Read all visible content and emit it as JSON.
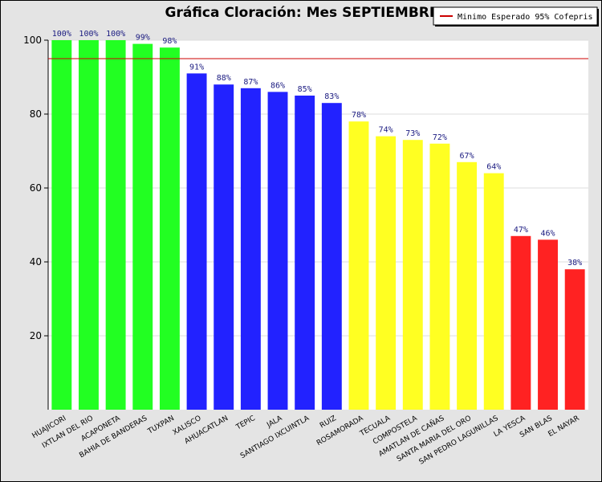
{
  "chart_data": {
    "type": "bar",
    "title": "Gráfica Cloración: Mes SEPTIEMBRE",
    "xlabel": "",
    "ylabel": "",
    "ylim": [
      0,
      100
    ],
    "yticks": [
      "20",
      "40",
      "60",
      "80",
      "100"
    ],
    "grid": true,
    "legend_position": "top-right",
    "categories": [
      "HUAJICORI",
      "IXTLAN DEL RIO",
      "ACAPONETA",
      "BAHIA DE BANDERAS",
      "TUXPAN",
      "XALISCO",
      "AHUACATLAN",
      "TEPIC",
      "JALA",
      "SANTIAGO IXCUINTLA",
      "RUIZ",
      "ROSAMORADA",
      "TECUALA",
      "COMPOSTELA",
      "AMATLAN DE CAÑAS",
      "SANTA MARIA DEL ORO",
      "SAN PEDRO LAGUNILLAS",
      "LA YESCA",
      "SAN BLAS",
      "EL NAYAR"
    ],
    "values": [
      100,
      100,
      100,
      99,
      98,
      91,
      88,
      87,
      86,
      85,
      83,
      78,
      74,
      73,
      72,
      67,
      64,
      47,
      46,
      38
    ],
    "data_labels": [
      "100%",
      "100%",
      "100%",
      "99%",
      "98%",
      "91%",
      "88%",
      "87%",
      "86%",
      "85%",
      "83%",
      "78%",
      "74%",
      "73%",
      "72%",
      "67%",
      "64%",
      "47%",
      "46%",
      "38%"
    ],
    "bar_colors": [
      "#22ff22",
      "#22ff22",
      "#22ff22",
      "#22ff22",
      "#22ff22",
      "#2222ff",
      "#2222ff",
      "#2222ff",
      "#2222ff",
      "#2222ff",
      "#2222ff",
      "#ffff22",
      "#ffff22",
      "#ffff22",
      "#ffff22",
      "#ffff22",
      "#ffff22",
      "#ff2222",
      "#ff2222",
      "#ff2222"
    ],
    "reference_line": {
      "name": "Minimo Esperado 95% Cofepris",
      "value": 95,
      "color": "#cc0000"
    }
  }
}
